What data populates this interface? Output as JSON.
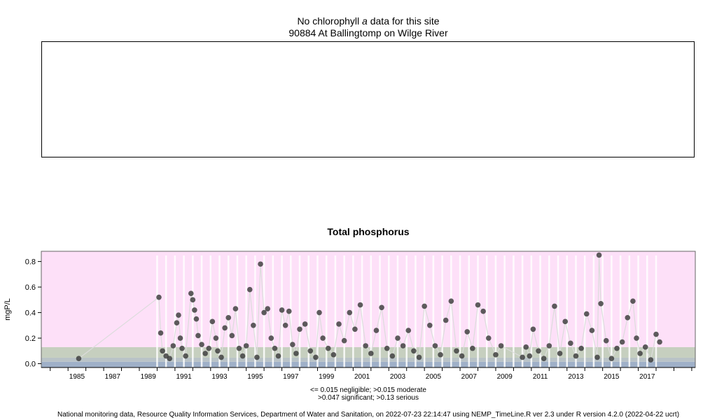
{
  "chl": {
    "title_pre": "No chlorophyll ",
    "title_italic": "a",
    "title_post": "  data for this site",
    "site": "90884 At Ballingtomp on Wilge River"
  },
  "chart_data": {
    "type": "scatter",
    "title": "Total phosphorus",
    "ylabel": "mgP/L",
    "xlabel": "",
    "xlim": [
      1983.5,
      2020.2
    ],
    "ylim": [
      -0.03,
      0.88
    ],
    "y_ticks": [
      "0.0",
      "0.2",
      "0.4",
      "0.6",
      "0.8"
    ],
    "x_ticks": [
      "1985",
      "1987",
      "1989",
      "1991",
      "1993",
      "1995",
      "1997",
      "1999",
      "2001",
      "2003",
      "2005",
      "2007",
      "2009",
      "2011",
      "2013",
      "2015",
      "2017"
    ],
    "bands": [
      {
        "label": "negligible",
        "from": -0.03,
        "to": 0.015,
        "color": "#9fb0c8"
      },
      {
        "label": "moderate",
        "from": 0.015,
        "to": 0.047,
        "color": "#b9c3c7"
      },
      {
        "label": "significant",
        "from": 0.047,
        "to": 0.13,
        "color": "#c6cfbf"
      },
      {
        "label": "serious",
        "from": 0.13,
        "to": 0.88,
        "color": "#fde0f8"
      }
    ],
    "point_color": "#3a3a3a",
    "series": [
      {
        "x": [
          1985.6,
          1990.1,
          1990.2,
          1990.3,
          1990.5,
          1990.7,
          1990.9,
          1991.1,
          1991.2,
          1991.3,
          1991.4,
          1991.6,
          1991.9,
          1992.0,
          1992.1,
          1992.2,
          1992.3,
          1992.5,
          1992.7,
          1992.9,
          1993.1,
          1993.3,
          1993.4,
          1993.6,
          1993.8,
          1994.0,
          1994.2,
          1994.4,
          1994.6,
          1994.8,
          1995.0,
          1995.2,
          1995.4,
          1995.6,
          1995.8,
          1996.0,
          1996.2,
          1996.4,
          1996.6,
          1996.8,
          1997.0,
          1997.2,
          1997.4,
          1997.6,
          1997.8,
          1998.0,
          1998.3,
          1998.6,
          1998.9,
          1999.1,
          1999.3,
          1999.6,
          1999.9,
          2000.2,
          2000.5,
          2000.8,
          2001.1,
          2001.4,
          2001.7,
          2002.0,
          2002.3,
          2002.6,
          2002.9,
          2003.2,
          2003.5,
          2003.8,
          2004.1,
          2004.4,
          2004.7,
          2005.0,
          2005.3,
          2005.6,
          2005.9,
          2006.2,
          2006.5,
          2006.8,
          2007.1,
          2007.4,
          2007.7,
          2008.0,
          2008.3,
          2008.6,
          2009.0,
          2009.3,
          2010.5,
          2010.7,
          2010.9,
          2011.1,
          2011.4,
          2011.7,
          2012.0,
          2012.3,
          2012.6,
          2012.9,
          2013.2,
          2013.5,
          2013.8,
          2014.1,
          2014.4,
          2014.7,
          2014.8,
          2014.9,
          2015.2,
          2015.5,
          2015.8,
          2016.1,
          2016.4,
          2016.7,
          2016.9,
          2017.1,
          2017.4,
          2017.7,
          2018.0,
          2018.2
        ],
        "y": [
          0.04,
          0.52,
          0.24,
          0.1,
          0.06,
          0.04,
          0.14,
          0.32,
          0.38,
          0.2,
          0.12,
          0.06,
          0.55,
          0.5,
          0.42,
          0.35,
          0.22,
          0.15,
          0.08,
          0.12,
          0.33,
          0.2,
          0.1,
          0.05,
          0.28,
          0.36,
          0.22,
          0.43,
          0.12,
          0.06,
          0.14,
          0.58,
          0.3,
          0.05,
          0.78,
          0.4,
          0.43,
          0.2,
          0.12,
          0.06,
          0.42,
          0.3,
          0.41,
          0.15,
          0.08,
          0.27,
          0.31,
          0.1,
          0.05,
          0.4,
          0.2,
          0.12,
          0.07,
          0.31,
          0.18,
          0.4,
          0.27,
          0.46,
          0.14,
          0.08,
          0.26,
          0.44,
          0.12,
          0.06,
          0.2,
          0.14,
          0.26,
          0.1,
          0.05,
          0.45,
          0.3,
          0.14,
          0.07,
          0.34,
          0.49,
          0.1,
          0.06,
          0.25,
          0.12,
          0.46,
          0.41,
          0.2,
          0.07,
          0.14,
          0.05,
          0.13,
          0.06,
          0.27,
          0.1,
          0.04,
          0.14,
          0.45,
          0.08,
          0.33,
          0.16,
          0.06,
          0.12,
          0.39,
          0.26,
          0.05,
          0.85,
          0.47,
          0.18,
          0.04,
          0.12,
          0.17,
          0.36,
          0.49,
          0.2,
          0.08,
          0.13,
          0.03,
          0.23,
          0.17
        ]
      }
    ],
    "notes": [
      "<= 0.015 negligible; >0.015 moderate",
      ">0.047 significant; >0.13 serious"
    ]
  },
  "footer": "National monitoring data, Resource Quality Information Services, Department of Water and Sanitation, on 2022-07-23 22:14:47 using NEMP_TimeLine.R ver 2.3 under R version 4.2.0 (2022-04-22 ucrt)"
}
